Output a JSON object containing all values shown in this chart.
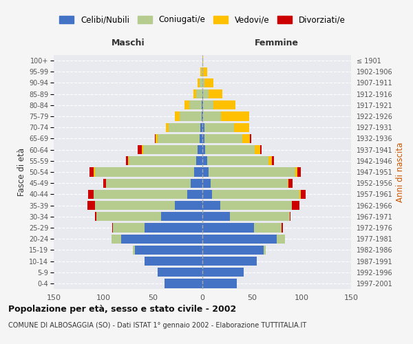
{
  "age_groups": [
    "0-4",
    "5-9",
    "10-14",
    "15-19",
    "20-24",
    "25-29",
    "30-34",
    "35-39",
    "40-44",
    "45-49",
    "50-54",
    "55-59",
    "60-64",
    "65-69",
    "70-74",
    "75-79",
    "80-84",
    "85-89",
    "90-94",
    "95-99",
    "100+"
  ],
  "birth_years": [
    "1997-2001",
    "1992-1996",
    "1987-1991",
    "1982-1986",
    "1977-1981",
    "1972-1976",
    "1967-1971",
    "1962-1966",
    "1957-1961",
    "1952-1956",
    "1947-1951",
    "1942-1946",
    "1937-1941",
    "1932-1936",
    "1927-1931",
    "1922-1926",
    "1917-1921",
    "1912-1916",
    "1907-1911",
    "1902-1906",
    "≤ 1901"
  ],
  "males": {
    "celibi": [
      38,
      45,
      58,
      68,
      82,
      58,
      42,
      28,
      15,
      12,
      8,
      6,
      5,
      3,
      2,
      1,
      1,
      0,
      0,
      0,
      0
    ],
    "coniugati": [
      0,
      0,
      0,
      2,
      10,
      32,
      65,
      80,
      95,
      85,
      100,
      68,
      55,
      42,
      32,
      22,
      12,
      6,
      3,
      1,
      0
    ],
    "vedovi": [
      0,
      0,
      0,
      0,
      0,
      0,
      0,
      0,
      0,
      0,
      2,
      1,
      1,
      2,
      3,
      5,
      5,
      3,
      2,
      1,
      0
    ],
    "divorziati": [
      0,
      0,
      0,
      0,
      0,
      1,
      1,
      8,
      5,
      3,
      4,
      2,
      4,
      1,
      0,
      0,
      0,
      0,
      0,
      0,
      0
    ]
  },
  "females": {
    "nubili": [
      35,
      42,
      55,
      62,
      75,
      52,
      28,
      18,
      10,
      8,
      6,
      5,
      3,
      2,
      2,
      1,
      1,
      1,
      0,
      0,
      0
    ],
    "coniugate": [
      0,
      0,
      0,
      2,
      8,
      28,
      60,
      72,
      88,
      78,
      88,
      62,
      50,
      38,
      30,
      18,
      10,
      5,
      2,
      1,
      0
    ],
    "vedove": [
      0,
      0,
      0,
      0,
      0,
      0,
      0,
      0,
      1,
      1,
      2,
      3,
      5,
      8,
      15,
      28,
      22,
      14,
      9,
      4,
      1
    ],
    "divorziate": [
      0,
      0,
      0,
      0,
      0,
      1,
      1,
      8,
      5,
      4,
      3,
      2,
      2,
      1,
      0,
      0,
      0,
      0,
      0,
      0,
      0
    ]
  },
  "colors": {
    "celibi_nubili": "#4472c4",
    "coniugati": "#b5cc8e",
    "vedovi": "#ffc000",
    "divorziati": "#cc0000"
  },
  "xlim": 150,
  "title": "Popolazione per età, sesso e stato civile - 2002",
  "subtitle": "COMUNE DI ALBOSAGGIA (SO) - Dati ISTAT 1° gennaio 2002 - Elaborazione TUTTITALIA.IT",
  "ylabel_left": "Fasce di età",
  "ylabel_right": "Anni di nascita",
  "xlabel_left": "Maschi",
  "xlabel_right": "Femmine",
  "bg_color": "#f5f5f5",
  "plot_bg_color": "#e8eaf0"
}
